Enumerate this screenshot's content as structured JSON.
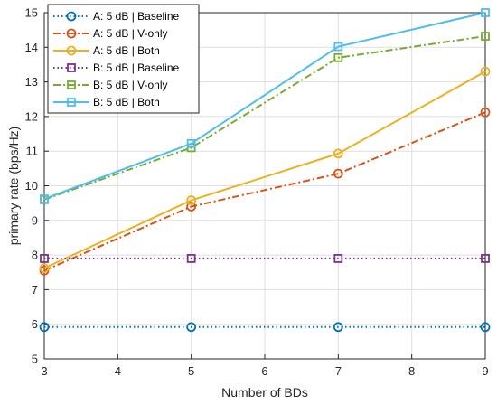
{
  "chart_data": {
    "type": "line",
    "title": "",
    "xlabel": "Number of BDs",
    "ylabel": "primary rate (bps/Hz)",
    "xlim": [
      3,
      9
    ],
    "ylim": [
      5,
      15
    ],
    "xticks": [
      "3",
      "4",
      "5",
      "6",
      "7",
      "8",
      "9"
    ],
    "yticks": [
      "5",
      "6",
      "7",
      "8",
      "9",
      "10",
      "11",
      "12",
      "13",
      "14",
      "15"
    ],
    "grid": true,
    "legend_position": "top-left",
    "x": [
      3,
      5,
      7,
      9
    ],
    "series": [
      {
        "name": "A: 5 dB | Baseline",
        "values": [
          5.92,
          5.92,
          5.92,
          5.92
        ],
        "color": "#0072BD",
        "dash": "dotted",
        "marker": "circle"
      },
      {
        "name": "A: 5 dB | V-only",
        "values": [
          7.55,
          9.4,
          10.35,
          12.12
        ],
        "color": "#D95319",
        "dash": "dashdot",
        "marker": "circle"
      },
      {
        "name": "A: 5 dB | Both",
        "values": [
          7.62,
          9.58,
          10.93,
          13.3
        ],
        "color": "#EDB120",
        "dash": "solid",
        "marker": "circle"
      },
      {
        "name": "B: 5 dB | Baseline",
        "values": [
          7.9,
          7.9,
          7.9,
          7.9
        ],
        "color": "#7E2F8E",
        "dash": "dotted",
        "marker": "square"
      },
      {
        "name": "B: 5 dB | V-only",
        "values": [
          9.6,
          11.1,
          13.7,
          14.32
        ],
        "color": "#77AC30",
        "dash": "dashdot",
        "marker": "square"
      },
      {
        "name": "B: 5 dB | Both",
        "values": [
          9.62,
          11.22,
          14.02,
          15.0
        ],
        "color": "#4DBEEE",
        "dash": "solid",
        "marker": "square"
      }
    ]
  }
}
